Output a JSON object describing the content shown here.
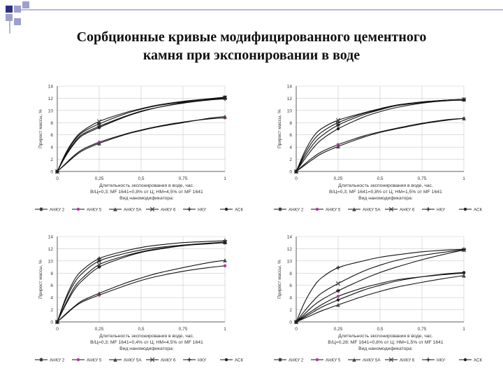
{
  "slide": {
    "title_line1": "Сорбционные кривые модифицированного цементного",
    "title_line2": "камня при экспонировании в воде",
    "colors": {
      "accent_dark": "#2b2f82",
      "accent_light": "#9da0cf"
    }
  },
  "chart_data": [
    {
      "type": "line",
      "ylabel": "Прирост массы, %",
      "xlabel": "Длительность экспонирования в воде, час.",
      "condition": "В/Ц=0,3; МF 1641=0,8% от Ц; НМ=4,5% от МF 1641",
      "legend_title": "Вид наномодификатора:",
      "x_ticks": [
        "0",
        "0,25",
        "0,5",
        "0,75",
        "1"
      ],
      "y_ticks": [
        "0",
        "2",
        "4",
        "6",
        "8",
        "10",
        "12",
        "14"
      ],
      "xlim": [
        0,
        1
      ],
      "ylim": [
        0,
        14
      ],
      "x": [
        0,
        0.05,
        0.1,
        0.15,
        0.25,
        0.4,
        0.5,
        0.6,
        0.75,
        0.9,
        1
      ],
      "series": [
        {
          "name": "АНКУ 2",
          "values": [
            0,
            2.8,
            5.0,
            6.4,
            7.8,
            9.4,
            10.2,
            10.8,
            11.4,
            11.8,
            12.0
          ]
        },
        {
          "name": "АНКУ 5",
          "values": [
            0,
            1.3,
            2.6,
            3.6,
            4.8,
            6.1,
            6.8,
            7.4,
            8.1,
            8.6,
            8.8
          ]
        },
        {
          "name": "АНКУ 5А",
          "values": [
            0,
            1.2,
            2.4,
            3.4,
            4.6,
            6.0,
            6.7,
            7.3,
            8.0,
            8.7,
            9.0
          ]
        },
        {
          "name": "АНКУ 6",
          "values": [
            0,
            3.0,
            5.2,
            6.6,
            8.2,
            9.6,
            10.3,
            10.9,
            11.5,
            11.9,
            12.1
          ]
        },
        {
          "name": "НКУ",
          "values": [
            0,
            2.6,
            4.7,
            6.1,
            7.4,
            9.0,
            9.9,
            10.5,
            11.2,
            11.7,
            11.9
          ]
        },
        {
          "name": "АСК",
          "values": [
            0,
            2.5,
            4.5,
            5.9,
            7.2,
            8.9,
            9.8,
            10.5,
            11.3,
            11.9,
            12.2
          ]
        }
      ]
    },
    {
      "type": "line",
      "ylabel": "Прирост массы, %",
      "xlabel": "Длительность экспонирования в воде, час.",
      "condition": "В/Ц=0,3; МF 1641=0,8% от Ц; НМ=1,5% от МF 1641",
      "legend_title": "Вид наномодификатора:",
      "x_ticks": [
        "0",
        "0,25",
        "0,5",
        "0,75",
        "1"
      ],
      "y_ticks": [
        "0",
        "2",
        "4",
        "6",
        "8",
        "10",
        "12",
        "14"
      ],
      "xlim": [
        0,
        1
      ],
      "ylim": [
        0,
        14
      ],
      "x": [
        0,
        0.05,
        0.1,
        0.15,
        0.25,
        0.4,
        0.5,
        0.6,
        0.75,
        0.9,
        1
      ],
      "series": [
        {
          "name": "АНКУ 2",
          "values": [
            0,
            2.4,
            4.4,
            5.8,
            7.6,
            9.3,
            10.1,
            10.8,
            11.4,
            11.7,
            11.8
          ]
        },
        {
          "name": "АНКУ 5",
          "values": [
            0,
            1.2,
            2.3,
            3.2,
            4.4,
            5.8,
            6.5,
            7.1,
            7.9,
            8.5,
            8.7
          ]
        },
        {
          "name": "АНКУ 5А",
          "values": [
            0,
            1.0,
            2.0,
            2.9,
            4.1,
            5.6,
            6.4,
            7.0,
            7.8,
            8.4,
            8.7
          ]
        },
        {
          "name": "АНКУ 6",
          "values": [
            0,
            3.2,
            5.6,
            7.0,
            8.4,
            9.6,
            10.3,
            10.9,
            11.4,
            11.7,
            11.8
          ]
        },
        {
          "name": "НКУ",
          "values": [
            0,
            2.8,
            5.0,
            6.4,
            8.0,
            9.5,
            10.2,
            10.8,
            11.3,
            11.7,
            11.8
          ]
        },
        {
          "name": "АСК",
          "values": [
            0,
            2.0,
            3.8,
            5.2,
            7.0,
            8.9,
            9.8,
            10.5,
            11.2,
            11.6,
            11.7
          ]
        }
      ]
    },
    {
      "type": "line",
      "ylabel": "Прирост массы, %",
      "xlabel": "Длительность экспонирования в воде, час.",
      "condition": "В/Ц=0,3; МF 1641=0,4% от Ц; НМ=4,5% от МF 1641",
      "legend_title": "Вид наномодификатора:",
      "x_ticks": [
        "0",
        "0,25",
        "0,5",
        "0,75",
        "1"
      ],
      "y_ticks": [
        "0",
        "2",
        "4",
        "6",
        "8",
        "10",
        "12",
        "14"
      ],
      "xlim": [
        0,
        1
      ],
      "ylim": [
        0,
        14
      ],
      "x": [
        0,
        0.05,
        0.1,
        0.15,
        0.25,
        0.4,
        0.5,
        0.6,
        0.75,
        0.9,
        1
      ],
      "series": [
        {
          "name": "АНКУ 2",
          "values": [
            0,
            3.6,
            6.3,
            8.0,
            10.0,
            11.2,
            11.8,
            12.2,
            12.6,
            12.9,
            13.0
          ]
        },
        {
          "name": "АНКУ 5",
          "values": [
            0,
            1.2,
            2.4,
            3.3,
            4.4,
            5.9,
            6.8,
            7.5,
            8.3,
            8.9,
            9.2
          ]
        },
        {
          "name": "АНКУ 5А",
          "values": [
            0,
            1.3,
            2.5,
            3.5,
            4.7,
            6.3,
            7.2,
            8.0,
            8.9,
            9.7,
            10.1
          ]
        },
        {
          "name": "АНКУ 6",
          "values": [
            0,
            3.0,
            5.6,
            7.2,
            9.4,
            10.8,
            11.5,
            12.0,
            12.5,
            12.9,
            13.1
          ]
        },
        {
          "name": "НКУ",
          "values": [
            0,
            3.9,
            6.8,
            8.5,
            10.4,
            11.6,
            12.2,
            12.6,
            13.0,
            13.2,
            13.3
          ]
        },
        {
          "name": "АСК",
          "values": [
            0,
            2.8,
            5.2,
            6.8,
            9.0,
            10.6,
            11.4,
            11.9,
            12.5,
            12.8,
            13.0
          ]
        }
      ]
    },
    {
      "type": "line",
      "ylabel": "Прирост массы, %",
      "xlabel": "Длительность экспонирования в воде, час.",
      "condition": "В/Ц=0,28; МF 1641=0,8% от Ц; НМ=1,5% от МF 1641",
      "legend_title": "Вид наномодификатора:",
      "x_ticks": [
        "0",
        "0,25",
        "0,5",
        "0,75",
        "1"
      ],
      "y_ticks": [
        "0",
        "2",
        "4",
        "6",
        "8",
        "10",
        "12",
        "14"
      ],
      "xlim": [
        0,
        1
      ],
      "ylim": [
        0,
        14
      ],
      "x": [
        0,
        0.05,
        0.1,
        0.15,
        0.25,
        0.4,
        0.5,
        0.6,
        0.75,
        0.9,
        1
      ],
      "series": [
        {
          "name": "АНКУ 2",
          "values": [
            0,
            1.3,
            2.6,
            3.6,
            5.1,
            7.0,
            8.1,
            9.0,
            10.2,
            11.2,
            11.8
          ]
        },
        {
          "name": "АНКУ 5",
          "values": [
            0,
            1.0,
            1.9,
            2.8,
            4.2,
            5.6,
            6.3,
            6.9,
            7.4,
            7.8,
            8.0
          ]
        },
        {
          "name": "АНКУ 5А",
          "values": [
            0,
            0.6,
            1.2,
            1.8,
            2.8,
            4.2,
            5.0,
            5.7,
            6.5,
            7.2,
            7.6
          ]
        },
        {
          "name": "АНКУ 6",
          "values": [
            0,
            1.8,
            3.4,
            4.7,
            6.3,
            8.3,
            9.3,
            10.1,
            10.9,
            11.5,
            11.8
          ]
        },
        {
          "name": "НКУ",
          "values": [
            0,
            3.2,
            5.6,
            7.2,
            8.9,
            10.0,
            10.6,
            11.0,
            11.5,
            11.8,
            11.9
          ]
        },
        {
          "name": "АСК",
          "values": [
            0,
            0.8,
            1.6,
            2.4,
            3.6,
            5.2,
            6.0,
            6.7,
            7.4,
            7.9,
            8.1
          ]
        }
      ]
    }
  ]
}
